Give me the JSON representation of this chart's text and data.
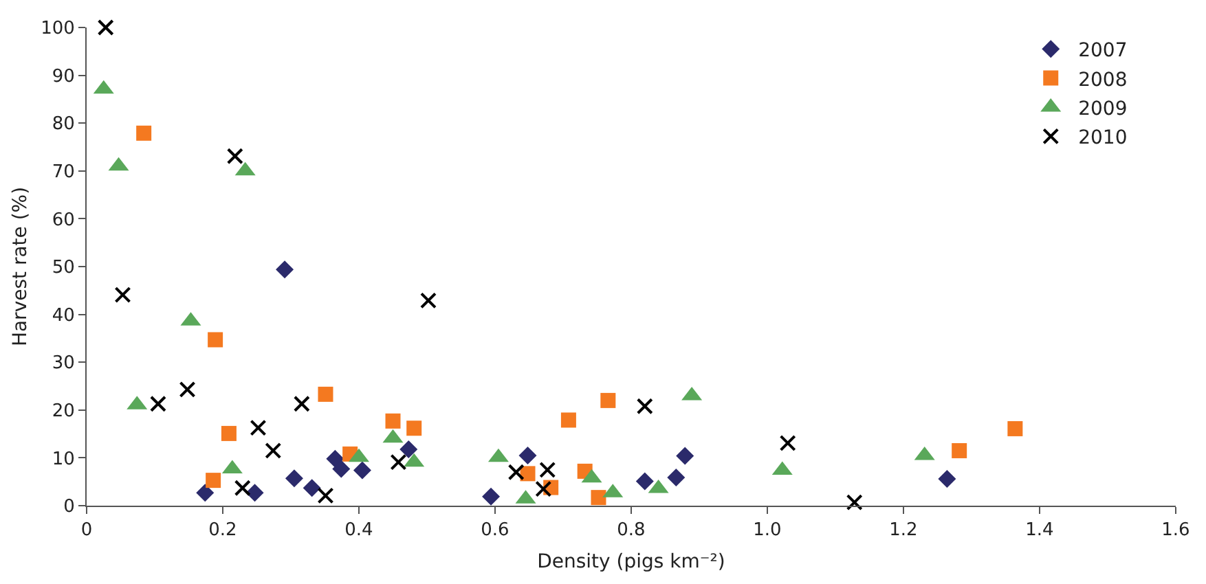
{
  "chart_data": {
    "type": "scatter",
    "xlabel": "Density (pigs km⁻²)",
    "ylabel": "Harvest rate (%)",
    "xlim": [
      0,
      1.6
    ],
    "xticks": [
      0,
      0.2,
      0.4,
      0.6,
      0.8,
      {
        "value": 1.0,
        "label": "1.0"
      },
      1.2,
      1.4,
      1.6
    ],
    "ylim": [
      0,
      100
    ],
    "yticks": [
      0,
      10,
      20,
      30,
      40,
      50,
      60,
      70,
      80,
      90,
      100
    ],
    "legend": "top right",
    "series": [
      {
        "name": "2007",
        "color": "#2b2a6b",
        "marker": "diamond",
        "x": [
          0.174,
          0.291,
          0.247,
          0.305,
          0.331,
          0.365,
          0.374,
          0.405,
          0.473,
          0.648,
          0.594,
          0.82,
          0.866,
          0.879,
          1.264
        ],
        "values": [
          2.7,
          49.4,
          2.7,
          5.7,
          3.7,
          9.8,
          7.7,
          7.4,
          11.8,
          10.5,
          1.9,
          5.1,
          5.9,
          10.4,
          5.6
        ]
      },
      {
        "name": "2008",
        "color": "#f47920",
        "marker": "square",
        "x": [
          0.084,
          0.189,
          0.209,
          0.186,
          0.351,
          0.387,
          0.45,
          0.481,
          0.648,
          0.682,
          0.708,
          0.732,
          0.752,
          0.766,
          1.282,
          1.364
        ],
        "values": [
          77.9,
          34.7,
          15.1,
          5.3,
          23.3,
          10.8,
          17.7,
          16.2,
          6.7,
          3.8,
          17.9,
          7.2,
          1.7,
          22.0,
          11.5,
          16.1
        ]
      },
      {
        "name": "2009",
        "color": "#5aa85a",
        "marker": "triangle",
        "x": [
          0.025,
          0.047,
          0.074,
          0.153,
          0.214,
          0.233,
          0.4,
          0.45,
          0.481,
          0.605,
          0.645,
          0.742,
          0.773,
          0.84,
          0.889,
          1.022,
          1.231
        ],
        "values": [
          87.1,
          71.0,
          21.1,
          38.6,
          7.7,
          70.0,
          10.1,
          14.1,
          9.1,
          10.1,
          1.4,
          5.8,
          2.7,
          3.6,
          23.0,
          7.4,
          10.5
        ]
      },
      {
        "name": "2010",
        "color": "#000000",
        "marker": "cross",
        "x": [
          0.028,
          0.053,
          0.105,
          0.148,
          0.218,
          0.229,
          0.252,
          0.274,
          0.316,
          0.351,
          0.458,
          0.502,
          0.631,
          0.677,
          0.671,
          0.82,
          1.03,
          1.128
        ],
        "values": [
          100,
          44.1,
          21.3,
          24.3,
          73.1,
          3.7,
          16.3,
          11.5,
          21.3,
          2.1,
          9.1,
          42.9,
          7.0,
          7.5,
          3.5,
          20.8,
          13.1,
          0.7
        ]
      }
    ]
  }
}
